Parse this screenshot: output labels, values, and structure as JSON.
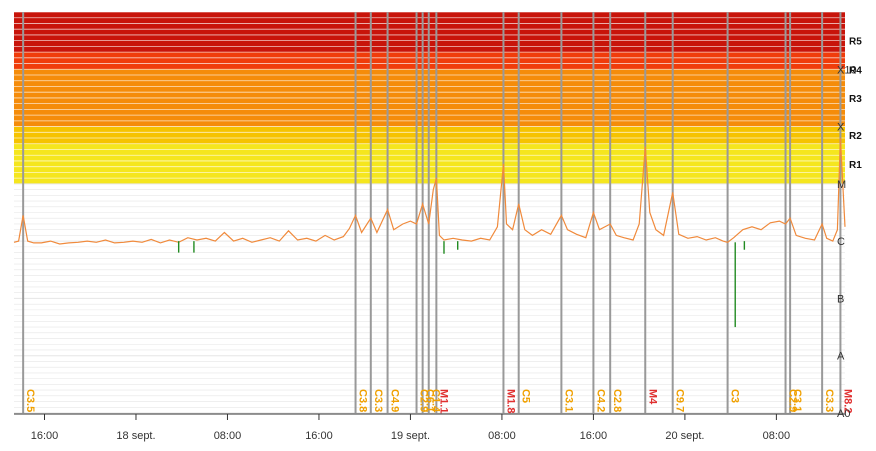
{
  "chart_data": {
    "type": "line",
    "title": "",
    "xlabel": "",
    "ylabel": "",
    "x_start_hour": 14,
    "x_end_hour": 68.5,
    "x_ticks": [
      {
        "hour": 16,
        "label": "16:00"
      },
      {
        "hour": 22,
        "label": "18 sept."
      },
      {
        "hour": 28,
        "label": "08:00"
      },
      {
        "hour": 34,
        "label": "16:00"
      },
      {
        "hour": 40,
        "label": "19 sept."
      },
      {
        "hour": 46,
        "label": "08:00"
      },
      {
        "hour": 52,
        "label": "16:00"
      },
      {
        "hour": 58,
        "label": "20 sept."
      },
      {
        "hour": 64,
        "label": "08:00"
      }
    ],
    "flux_classes": [
      {
        "label": "A0",
        "level": 0
      },
      {
        "label": "A",
        "level": 1
      },
      {
        "label": "B",
        "level": 2
      },
      {
        "label": "C",
        "level": 3
      },
      {
        "label": "M",
        "level": 4
      },
      {
        "label": "X",
        "level": 5
      },
      {
        "label": "X10",
        "level": 6
      }
    ],
    "radio_blackout_levels": [
      {
        "label": "R1",
        "level": 4.0,
        "color": "#f5e61e"
      },
      {
        "label": "R2",
        "level": 4.7,
        "color": "#f6c300"
      },
      {
        "label": "R3",
        "level": 5.0,
        "color": "#f58c0a"
      },
      {
        "label": "R4",
        "level": 6.0,
        "color": "#f03c0a"
      },
      {
        "label": "R5",
        "level": 6.3,
        "color": "#c8140a"
      }
    ],
    "flares": [
      {
        "hour": 14.6,
        "label": "C3.5",
        "class": "C"
      },
      {
        "hour": 36.4,
        "label": "C3.8",
        "class": "C"
      },
      {
        "hour": 37.4,
        "label": "C3.3",
        "class": "C"
      },
      {
        "hour": 38.5,
        "label": "C4.9",
        "class": "C"
      },
      {
        "hour": 40.4,
        "label": "C2.9",
        "class": "C"
      },
      {
        "hour": 40.8,
        "label": "C6.1",
        "class": "C"
      },
      {
        "hour": 41.2,
        "label": "C1.4",
        "class": "C"
      },
      {
        "hour": 41.7,
        "label": "M1.1",
        "class": "M"
      },
      {
        "hour": 46.1,
        "label": "M1.8",
        "class": "M"
      },
      {
        "hour": 47.1,
        "label": "C5",
        "class": "C"
      },
      {
        "hour": 49.9,
        "label": "C3.1",
        "class": "C"
      },
      {
        "hour": 52.0,
        "label": "C4.2",
        "class": "C"
      },
      {
        "hour": 53.1,
        "label": "C2.8",
        "class": "C"
      },
      {
        "hour": 55.4,
        "label": "M4",
        "class": "M"
      },
      {
        "hour": 57.2,
        "label": "C9.7",
        "class": "C"
      },
      {
        "hour": 60.8,
        "label": "C3",
        "class": "C"
      },
      {
        "hour": 64.6,
        "label": "C2.9",
        "class": "C"
      },
      {
        "hour": 64.9,
        "label": "C3.1",
        "class": "C"
      },
      {
        "hour": 67.0,
        "label": "C3.3",
        "class": "C"
      },
      {
        "hour": 68.2,
        "label": "M8.2",
        "class": "M"
      }
    ],
    "series": [
      {
        "x": [
          14.0,
          14.3,
          14.6,
          14.9,
          15.3,
          15.8,
          16.4,
          17.0,
          17.6,
          18.2,
          18.8,
          19.4,
          20.0,
          20.6,
          21.2,
          21.8,
          22.4,
          23.0,
          23.6,
          24.2,
          24.8,
          25.4,
          26.0,
          26.6,
          27.2,
          27.8,
          28.4,
          29.0,
          29.6,
          30.2,
          30.8,
          31.4,
          32.0,
          32.6,
          33.2,
          33.8,
          34.4,
          35.0,
          35.6,
          36.0,
          36.4,
          36.8,
          37.4,
          37.8,
          38.5,
          38.9,
          39.5,
          40.0,
          40.4,
          40.8,
          41.2,
          41.5,
          41.7,
          41.9,
          42.2,
          42.8,
          43.4,
          44.0,
          44.6,
          45.2,
          45.7,
          46.1,
          46.3,
          46.7,
          47.1,
          47.5,
          48.0,
          48.6,
          49.2,
          49.9,
          50.3,
          50.9,
          51.5,
          52.0,
          52.4,
          53.1,
          53.5,
          54.0,
          54.6,
          55.0,
          55.4,
          55.7,
          56.1,
          56.6,
          57.2,
          57.6,
          58.2,
          58.8,
          59.4,
          60.0,
          60.5,
          60.8,
          61.2,
          61.8,
          62.4,
          63.0,
          63.6,
          64.2,
          64.6,
          64.9,
          65.3,
          65.9,
          66.5,
          67.0,
          67.3,
          67.7,
          68.0,
          68.2,
          68.5
        ],
        "y": [
          2.98,
          3.0,
          3.45,
          3.0,
          2.97,
          2.97,
          3.0,
          2.95,
          2.97,
          2.98,
          3.0,
          2.98,
          3.02,
          2.97,
          2.98,
          3.0,
          2.98,
          3.03,
          2.97,
          3.02,
          2.98,
          3.06,
          3.02,
          3.05,
          3.0,
          3.15,
          3.0,
          3.05,
          2.98,
          3.02,
          3.06,
          3.0,
          3.18,
          3.02,
          3.05,
          3.0,
          3.1,
          3.02,
          3.08,
          3.22,
          3.45,
          3.15,
          3.4,
          3.15,
          3.55,
          3.2,
          3.3,
          3.35,
          3.3,
          3.65,
          3.3,
          3.9,
          4.1,
          3.1,
          3.02,
          3.05,
          3.02,
          3.0,
          3.05,
          3.02,
          3.25,
          4.35,
          3.3,
          3.2,
          3.65,
          3.2,
          3.1,
          3.2,
          3.12,
          3.45,
          3.2,
          3.12,
          3.06,
          3.5,
          3.2,
          3.3,
          3.1,
          3.06,
          3.02,
          3.3,
          4.65,
          3.5,
          3.2,
          3.1,
          3.85,
          3.12,
          3.05,
          3.08,
          3.02,
          3.06,
          3.0,
          2.98,
          3.06,
          3.2,
          3.25,
          3.2,
          3.32,
          3.35,
          3.3,
          3.4,
          3.1,
          3.05,
          3.02,
          3.3,
          3.05,
          3.0,
          3.2,
          4.8,
          3.25
        ]
      }
    ],
    "dips": [
      [
        24.8,
        3.0,
        2.8
      ],
      [
        25.8,
        3.0,
        2.8
      ],
      [
        42.2,
        3.0,
        2.78
      ],
      [
        43.1,
        3.0,
        2.85
      ],
      [
        61.3,
        2.98,
        1.5
      ],
      [
        61.9,
        3.0,
        2.85
      ]
    ],
    "colors": {
      "series": "#f08a3c",
      "dip": "#228b22",
      "flare_line": "#999999",
      "c_flare_label": "#f0a000",
      "m_flare_label": "#e03030",
      "grid": "#e6e6e6"
    },
    "grid": true
  }
}
